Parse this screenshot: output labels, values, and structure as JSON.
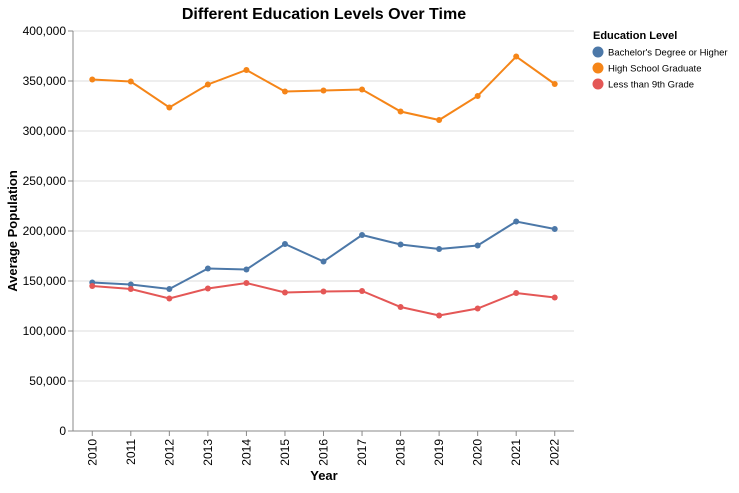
{
  "chart_data": {
    "type": "line",
    "title": "Different Education Levels Over Time",
    "xlabel": "Year",
    "ylabel": "Average Population",
    "ylim": [
      0,
      400000
    ],
    "yticks": [
      0,
      50000,
      100000,
      150000,
      200000,
      250000,
      300000,
      350000,
      400000
    ],
    "grid": true,
    "legend": {
      "title": "Education Level",
      "placement": "right"
    },
    "x": [
      "2010",
      "2011",
      "2012",
      "2013",
      "2014",
      "2015",
      "2016",
      "2017",
      "2018",
      "2019",
      "2020",
      "2021",
      "2022"
    ],
    "series": [
      {
        "name": "Bachelor's Degree or Higher",
        "color": "#4c78a8",
        "values": [
          148500,
          146500,
          142000,
          162500,
          161500,
          187000,
          169500,
          196000,
          186500,
          182000,
          185500,
          209500,
          202000
        ]
      },
      {
        "name": "High School Graduate",
        "color": "#f58518",
        "values": [
          351500,
          349500,
          323500,
          346500,
          361000,
          339500,
          340500,
          341500,
          319500,
          311000,
          335000,
          374500,
          347000
        ]
      },
      {
        "name": "Less than 9th Grade",
        "color": "#e45756",
        "values": [
          145000,
          142000,
          132500,
          142500,
          148000,
          138500,
          139500,
          140000,
          124000,
          115500,
          122500,
          138000,
          133500
        ]
      }
    ]
  }
}
